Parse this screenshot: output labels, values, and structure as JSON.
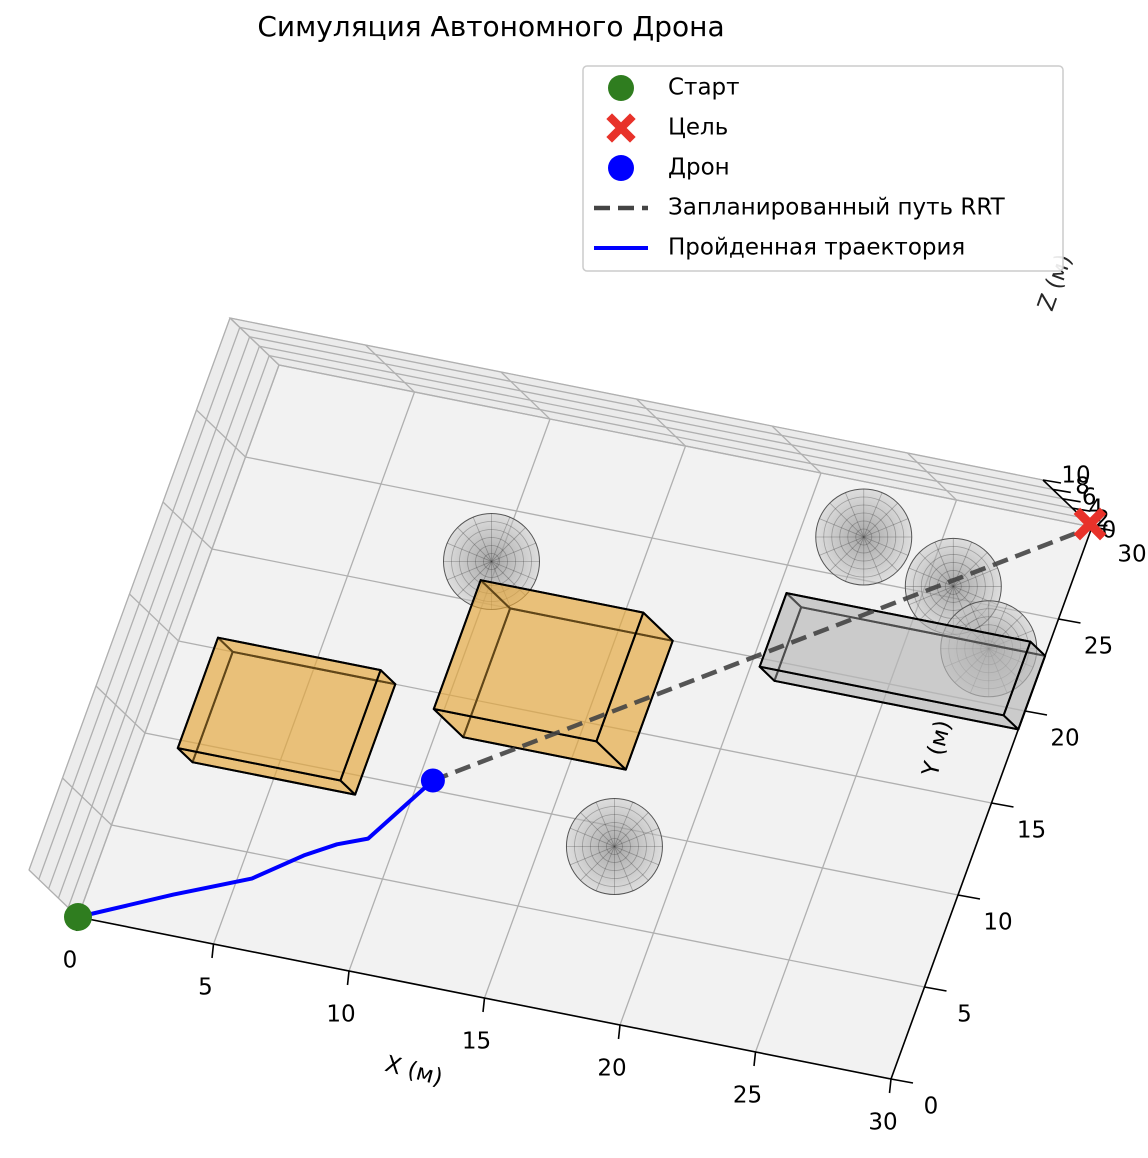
{
  "chart_data": {
    "type": "scatter",
    "projection": "3d",
    "title": "Симуляция Автономного Дрона",
    "xlabel": "X (м)",
    "ylabel": "Y (м)",
    "zlabel": "Z (м)",
    "xlim": [
      0,
      30
    ],
    "ylim": [
      0,
      30
    ],
    "zlim": [
      0,
      10
    ],
    "x_ticks": [
      "0",
      "5",
      "10",
      "15",
      "20",
      "25",
      "30"
    ],
    "y_ticks": [
      "0",
      "5",
      "10",
      "15",
      "20",
      "25",
      "30"
    ],
    "z_ticks": [
      "0",
      "2",
      "4",
      "6",
      "8",
      "10"
    ],
    "grid": true,
    "legend_position": "top-right",
    "legend": [
      {
        "label": "Старт",
        "marker": "circle",
        "color": "#2f7d1f"
      },
      {
        "label": "Цель",
        "marker": "x",
        "color": "#e8322a"
      },
      {
        "label": "Дрон",
        "marker": "circle",
        "color": "#0000ff"
      },
      {
        "label": "Запланированный путь RRT",
        "marker": "dashed-line",
        "color": "#444444"
      },
      {
        "label": "Пройденная траектория",
        "marker": "line",
        "color": "#0000ff"
      }
    ],
    "start": {
      "x": 0,
      "y": 0,
      "z": 0
    },
    "goal": {
      "x": 30,
      "y": 30,
      "z": 0
    },
    "drone": {
      "x": 10.5,
      "y": 10.5,
      "z": 0
    },
    "planned_path": [
      [
        10.5,
        10.5
      ],
      [
        30,
        30
      ]
    ],
    "trajectory": [
      [
        0,
        0
      ],
      [
        3,
        2.1
      ],
      [
        5.5,
        3.7
      ],
      [
        7,
        5.4
      ],
      [
        8,
        6.3
      ],
      [
        9,
        6.9
      ],
      [
        10.5,
        10.5
      ]
    ],
    "boxes": [
      {
        "x": [
          2,
          8
        ],
        "y": [
          9,
          15
        ],
        "z": [
          0,
          3
        ],
        "color": "#e5a73b"
      },
      {
        "x": [
          11,
          17
        ],
        "y": [
          13,
          20
        ],
        "z": [
          0,
          6
        ],
        "color": "#e5a73b"
      },
      {
        "x": [
          21,
          30
        ],
        "y": [
          19,
          23
        ],
        "z": [
          0,
          3
        ],
        "color": "#b8b8b8"
      }
    ],
    "spheres": [
      {
        "x": 10,
        "y": 22,
        "z": 1,
        "r": 1.6
      },
      {
        "x": 17.8,
        "y": 8.8,
        "z": 1,
        "r": 1.6
      },
      {
        "x": 22.5,
        "y": 27,
        "z": 1,
        "r": 1.6
      },
      {
        "x": 26.2,
        "y": 25.4,
        "z": 1,
        "r": 1.6
      },
      {
        "x": 28.2,
        "y": 22.6,
        "z": 1,
        "r": 1.6
      }
    ]
  }
}
